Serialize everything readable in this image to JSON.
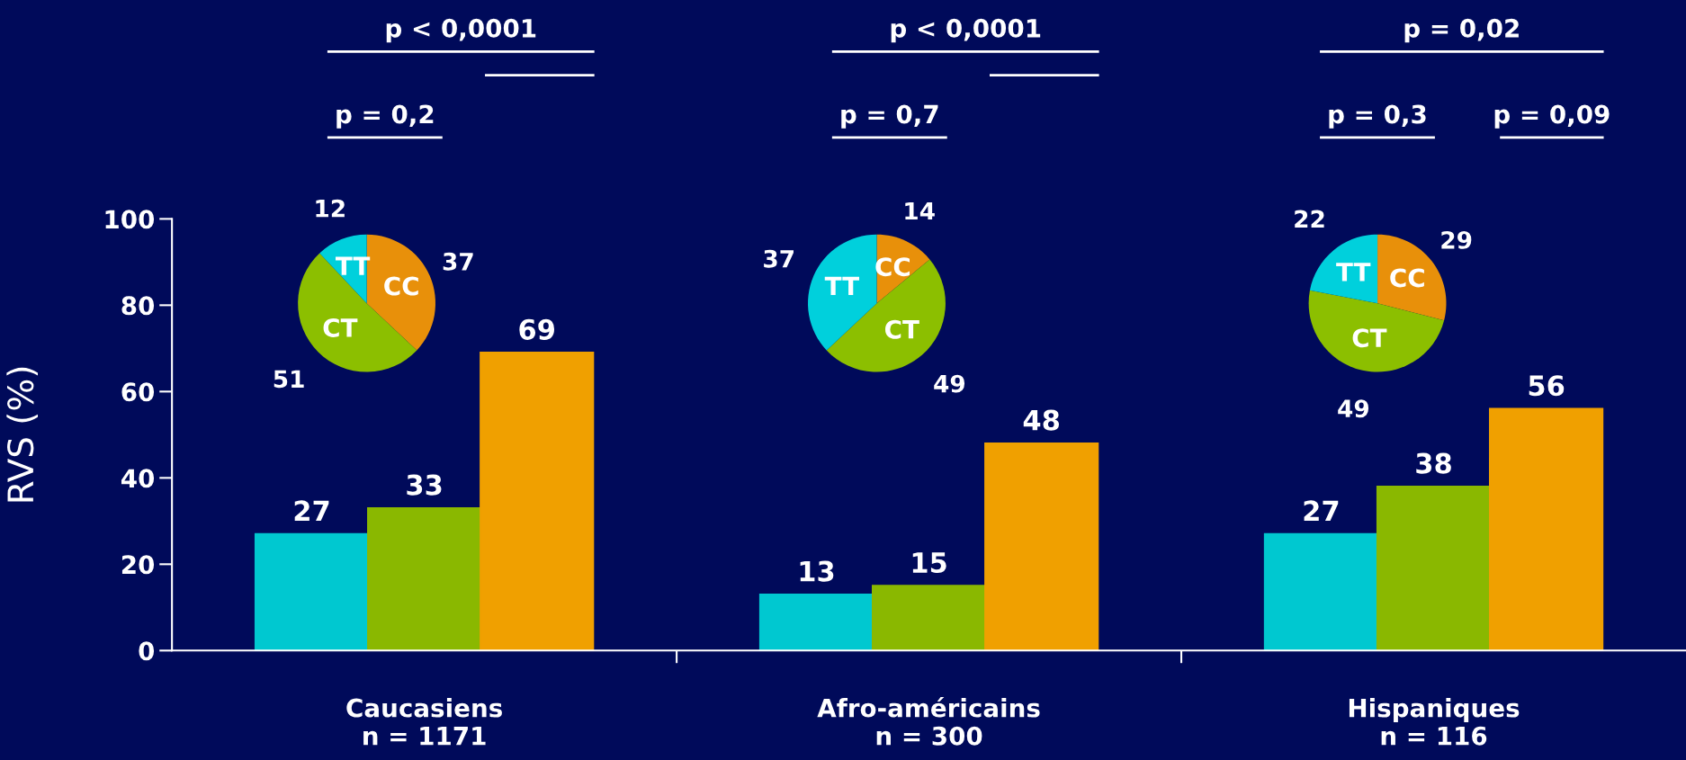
{
  "chart_data": [
    {
      "type": "bar",
      "ylabel": "RVS (%)",
      "categories": [
        "Caucasiens\nn = 1171",
        "Afro-américains\nn = 300",
        "Hispaniques\nn = 116"
      ],
      "ylim": [
        0,
        100
      ],
      "yticks": [
        0,
        20,
        40,
        60,
        80,
        100
      ],
      "data_labels": true,
      "grid": false,
      "legend": false,
      "series": [
        {
          "color": "#00c8d0",
          "values": [
            27,
            13,
            27
          ]
        },
        {
          "color": "#8ab800",
          "values": [
            33,
            15,
            38
          ]
        },
        {
          "color": "#f0a000",
          "values": [
            69,
            48,
            56
          ]
        }
      ],
      "annotations": [
        "p < 0,0001",
        "p = 0,2",
        "p < 0,0001",
        "p = 0,7",
        "p = 0,02",
        "p = 0,3",
        "p = 0,09"
      ]
    },
    {
      "type": "pie",
      "categories": [
        "CC",
        "CT",
        "TT"
      ],
      "values": [
        37,
        51,
        12
      ],
      "colors": [
        "#e8900a",
        "#8cbf00",
        "#00d0dc"
      ],
      "data_labels": true
    },
    {
      "type": "pie",
      "categories": [
        "CC",
        "CT",
        "TT"
      ],
      "values": [
        14,
        49,
        37
      ],
      "colors": [
        "#e8900a",
        "#8cbf00",
        "#00d0dc"
      ],
      "data_labels": true
    },
    {
      "type": "pie",
      "categories": [
        "CC",
        "CT",
        "TT"
      ],
      "values": [
        29,
        49,
        22
      ],
      "colors": [
        "#e8900a",
        "#8cbf00",
        "#00d0dc"
      ],
      "data_labels": true
    }
  ]
}
